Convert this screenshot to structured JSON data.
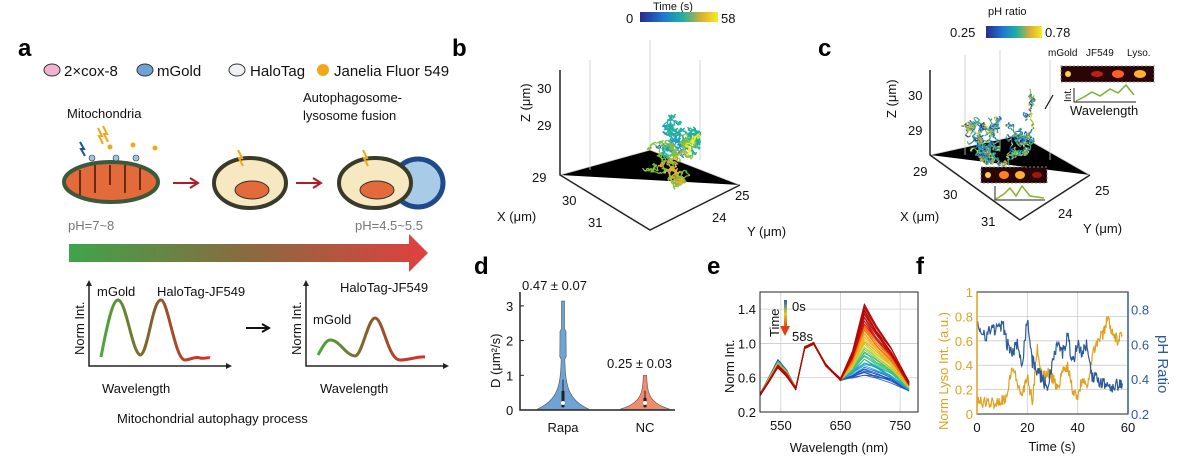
{
  "panel_a": {
    "label": "a",
    "legend": [
      {
        "name": "2×cox-8",
        "color": "#f2b3cf"
      },
      {
        "name": "mGold",
        "color": "#6fa3d8"
      },
      {
        "name": "HaloTag",
        "color": "#eef0f4"
      },
      {
        "name": "Janelia Fluor 549",
        "color": "#f0a818"
      }
    ],
    "stage_1": "Mitochondria",
    "stage_3_line1": "Autophagosome-",
    "stage_3_line2": "lysosome fusion",
    "ph_start": "pH=7~8",
    "ph_end": "pH=4.5~5.5",
    "spectrum_left": {
      "peak1": "mGold",
      "peak2": "HaloTag-JF549",
      "ylabel": "Norm Int.",
      "xlabel": "Wavelength"
    },
    "spectrum_right": {
      "peak1": "mGold",
      "peak2": "HaloTag-JF549",
      "ylabel": "Norm Int.",
      "xlabel": "Wavelength"
    },
    "caption": "Mitochondrial autophagy process",
    "colors": {
      "gradient_start": "#3fa44a",
      "gradient_end": "#e04040",
      "arrow": "#b01c24"
    }
  },
  "panel_b": {
    "label": "b",
    "colorbar_title": "Time (s)",
    "colorbar_min": "0",
    "colorbar_max": "58",
    "z_label": "Z (μm)",
    "z_ticks": [
      "30",
      "29"
    ],
    "x_label": "X (μm)",
    "x_ticks": [
      "29",
      "30",
      "31"
    ],
    "y_label": "Y (μm)",
    "y_ticks": [
      "25",
      "24"
    ]
  },
  "panel_c": {
    "label": "c",
    "colorbar_title": "pH ratio",
    "colorbar_min": "0.25",
    "colorbar_max": "0.78",
    "z_label": "Z (μm)",
    "z_ticks": [
      "30",
      "29"
    ],
    "x_label": "X (μm)",
    "x_ticks": [
      "29",
      "30",
      "31"
    ],
    "y_label": "Y (μm)",
    "y_ticks": [
      "25",
      "24"
    ],
    "inset": {
      "ch1": "mGold",
      "ch2": "JF549",
      "ch3": "Lyso.",
      "ylabel": "Int.",
      "xlabel": "Wavelength"
    }
  },
  "chart_data": [
    {
      "panel": "d",
      "type": "violin",
      "ylabel": "D (μm²/s)",
      "categories": [
        "Rapa",
        "NC"
      ],
      "yticks": [
        "0",
        "1",
        "2",
        "3"
      ],
      "ylim": [
        0,
        3.4
      ],
      "series": [
        {
          "category": "Rapa",
          "annotation": "0.47 ± 0.07",
          "median": 0.2,
          "q1": 0.08,
          "q3": 0.55,
          "max": 3.2,
          "color": "#6fa3d8"
        },
        {
          "category": "NC",
          "annotation": "0.25 ± 0.03",
          "median": 0.2,
          "q1": 0.08,
          "q3": 0.35,
          "max": 1.0,
          "color": "#f08c6c"
        }
      ]
    },
    {
      "panel": "e",
      "type": "line",
      "xlabel": "Wavelength (nm)",
      "ylabel": "Norm Int.",
      "xticks": [
        "550",
        "650",
        "750"
      ],
      "yticks": [
        "0.2",
        "0.6",
        "1.0",
        "1.4"
      ],
      "xlim": [
        515,
        780
      ],
      "ylim": [
        0.2,
        1.6
      ],
      "grid": true,
      "legend": {
        "title": "Time",
        "start": "0s",
        "end": "58s"
      },
      "x": [
        515,
        530,
        545,
        560,
        575,
        590,
        605,
        625,
        650,
        670,
        690,
        710,
        735,
        765
      ],
      "series": [
        {
          "name": "0s",
          "values": [
            0.4,
            0.6,
            0.8,
            0.68,
            0.48,
            0.95,
            1.0,
            0.75,
            0.58,
            0.6,
            0.62,
            0.6,
            0.55,
            0.45
          ]
        },
        {
          "name": "58s",
          "values": [
            0.4,
            0.55,
            0.72,
            0.62,
            0.47,
            0.95,
            1.0,
            0.75,
            0.58,
            0.9,
            1.45,
            1.2,
            0.95,
            0.55
          ]
        }
      ]
    },
    {
      "panel": "f",
      "type": "line",
      "xlabel": "Time (s)",
      "ylabel_left": "Norm Lyso Int. (a.u.)",
      "ylabel_right": "pH Ratio",
      "xticks": [
        "0",
        "20",
        "40",
        "60"
      ],
      "yticks_left": [
        "0",
        "0.2",
        "0.4",
        "0.6",
        "0.8",
        "1"
      ],
      "yticks_right": [
        "0.2",
        "0.4",
        "0.6",
        "0.8"
      ],
      "xlim": [
        0,
        60
      ],
      "ylim_left": [
        0,
        1
      ],
      "ylim_right": [
        0.2,
        0.9
      ],
      "grid": true,
      "x": [
        0,
        2,
        4,
        6,
        8,
        10,
        12,
        14,
        16,
        18,
        20,
        22,
        24,
        26,
        28,
        30,
        32,
        34,
        36,
        38,
        40,
        42,
        44,
        46,
        48,
        50,
        52,
        54,
        56,
        58
      ],
      "series": [
        {
          "name": "Norm Lyso Int. (a.u.)",
          "axis": "left",
          "color": "#e0a020",
          "values": [
            0.1,
            0.1,
            0.08,
            0.1,
            0.1,
            0.12,
            0.15,
            0.4,
            0.25,
            0.15,
            0.3,
            0.1,
            0.55,
            0.3,
            0.35,
            0.3,
            0.2,
            0.35,
            0.4,
            0.2,
            0.15,
            0.3,
            0.25,
            0.5,
            0.6,
            0.65,
            0.8,
            0.65,
            0.6,
            0.65
          ]
        },
        {
          "name": "pH Ratio",
          "axis": "right",
          "color": "#2c5a9a",
          "values": [
            0.7,
            0.68,
            0.65,
            0.7,
            0.68,
            0.72,
            0.6,
            0.55,
            0.6,
            0.5,
            0.75,
            0.5,
            0.45,
            0.4,
            0.35,
            0.5,
            0.6,
            0.55,
            0.65,
            0.5,
            0.6,
            0.55,
            0.6,
            0.4,
            0.4,
            0.38,
            0.37,
            0.36,
            0.37,
            0.36
          ]
        }
      ]
    }
  ]
}
